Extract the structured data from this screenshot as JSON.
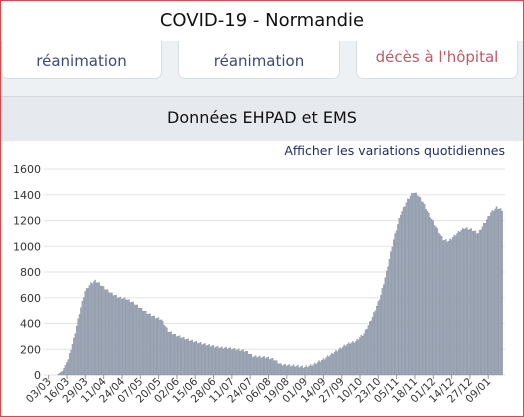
{
  "header": {
    "title": "COVID-19 - Normandie"
  },
  "cards": [
    {
      "label": "réanimation"
    },
    {
      "label": "réanimation"
    },
    {
      "label": "décès à l'hôpital"
    }
  ],
  "section": {
    "title": "Données EHPAD et EMS",
    "toggle_label": "Afficher les variations quotidiennes"
  },
  "colors": {
    "bar": "#a3acbb",
    "bar_edge": "#7b8698",
    "grid": "#e3e3e3",
    "frame": "#d84a4a",
    "link": "#1f2d6b"
  },
  "chart_data": {
    "type": "bar",
    "title": "",
    "xlabel": "",
    "ylabel": "",
    "ylim": [
      0,
      1600
    ],
    "yticks": [
      0,
      200,
      400,
      600,
      800,
      1000,
      1200,
      1400,
      1600
    ],
    "grid": true,
    "legend": "none",
    "xtick_labels": [
      "03/03",
      "16/03",
      "29/03",
      "11/04",
      "24/04",
      "07/05",
      "20/05",
      "02/06",
      "15/06",
      "28/06",
      "11/07",
      "24/07",
      "06/08",
      "19/08",
      "01/09",
      "14/09",
      "27/09",
      "10/10",
      "23/10",
      "05/11",
      "18/11",
      "01/12",
      "14/12",
      "27/12",
      "09/01"
    ],
    "anchors": [
      {
        "d": 0,
        "v": 0
      },
      {
        "d": 6,
        "v": 0
      },
      {
        "d": 10,
        "v": 30
      },
      {
        "d": 14,
        "v": 120
      },
      {
        "d": 18,
        "v": 280
      },
      {
        "d": 22,
        "v": 480
      },
      {
        "d": 26,
        "v": 650
      },
      {
        "d": 30,
        "v": 710
      },
      {
        "d": 33,
        "v": 730
      },
      {
        "d": 36,
        "v": 710
      },
      {
        "d": 40,
        "v": 670
      },
      {
        "d": 45,
        "v": 630
      },
      {
        "d": 50,
        "v": 600
      },
      {
        "d": 55,
        "v": 590
      },
      {
        "d": 60,
        "v": 560
      },
      {
        "d": 65,
        "v": 520
      },
      {
        "d": 70,
        "v": 480
      },
      {
        "d": 75,
        "v": 450
      },
      {
        "d": 80,
        "v": 430
      },
      {
        "d": 85,
        "v": 340
      },
      {
        "d": 90,
        "v": 310
      },
      {
        "d": 100,
        "v": 270
      },
      {
        "d": 110,
        "v": 240
      },
      {
        "d": 120,
        "v": 215
      },
      {
        "d": 130,
        "v": 205
      },
      {
        "d": 140,
        "v": 185
      },
      {
        "d": 145,
        "v": 145
      },
      {
        "d": 155,
        "v": 135
      },
      {
        "d": 160,
        "v": 120
      },
      {
        "d": 165,
        "v": 80
      },
      {
        "d": 175,
        "v": 70
      },
      {
        "d": 182,
        "v": 60
      },
      {
        "d": 188,
        "v": 80
      },
      {
        "d": 195,
        "v": 120
      },
      {
        "d": 205,
        "v": 190
      },
      {
        "d": 212,
        "v": 240
      },
      {
        "d": 218,
        "v": 260
      },
      {
        "d": 224,
        "v": 320
      },
      {
        "d": 230,
        "v": 450
      },
      {
        "d": 236,
        "v": 620
      },
      {
        "d": 240,
        "v": 800
      },
      {
        "d": 245,
        "v": 1050
      },
      {
        "d": 250,
        "v": 1250
      },
      {
        "d": 255,
        "v": 1360
      },
      {
        "d": 259,
        "v": 1420
      },
      {
        "d": 262,
        "v": 1400
      },
      {
        "d": 266,
        "v": 1340
      },
      {
        "d": 270,
        "v": 1250
      },
      {
        "d": 275,
        "v": 1150
      },
      {
        "d": 280,
        "v": 1050
      },
      {
        "d": 284,
        "v": 1040
      },
      {
        "d": 290,
        "v": 1100
      },
      {
        "d": 295,
        "v": 1140
      },
      {
        "d": 300,
        "v": 1130
      },
      {
        "d": 305,
        "v": 1100
      },
      {
        "d": 309,
        "v": 1170
      },
      {
        "d": 314,
        "v": 1260
      },
      {
        "d": 318,
        "v": 1300
      },
      {
        "d": 322,
        "v": 1280
      }
    ]
  }
}
